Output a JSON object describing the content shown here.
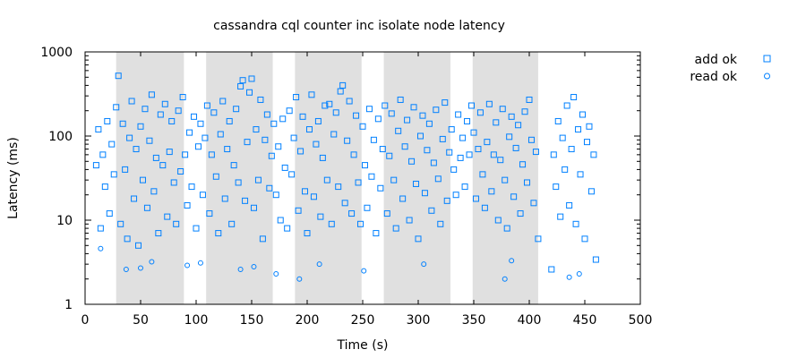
{
  "chart_data": {
    "type": "scatter",
    "title": "cassandra cql counter inc isolate node latency",
    "xlabel": "Time (s)",
    "ylabel": "Latency (ms)",
    "xlim": [
      0,
      500
    ],
    "ylim": [
      1,
      1000
    ],
    "y_scale": "log",
    "x_ticks": [
      0,
      50,
      100,
      150,
      200,
      250,
      300,
      350,
      400,
      450,
      500
    ],
    "x_tick_labels": [
      "0",
      "50",
      "100",
      "150",
      "200",
      "250",
      "300",
      "350",
      "400",
      "450",
      "500"
    ],
    "y_ticks": [
      1,
      10,
      100,
      1000
    ],
    "y_tick_labels": [
      "1",
      "10",
      "100",
      "1000"
    ],
    "legend_position": "top-right-outside",
    "shaded_intervals": [
      [
        28,
        89
      ],
      [
        109,
        169
      ],
      [
        189,
        249
      ],
      [
        269,
        329
      ],
      [
        349,
        408
      ]
    ],
    "shade_color": "#e0e0e0",
    "marker_color": "#0080ff",
    "series": [
      {
        "name": "add ok",
        "marker": "square",
        "points": [
          [
            10,
            45
          ],
          [
            12,
            120
          ],
          [
            14,
            8
          ],
          [
            16,
            60
          ],
          [
            18,
            25
          ],
          [
            20,
            150
          ],
          [
            22,
            12
          ],
          [
            24,
            80
          ],
          [
            26,
            35
          ],
          [
            28,
            220
          ],
          [
            30,
            520
          ],
          [
            32,
            9
          ],
          [
            34,
            140
          ],
          [
            36,
            40
          ],
          [
            38,
            6
          ],
          [
            40,
            95
          ],
          [
            42,
            260
          ],
          [
            44,
            18
          ],
          [
            46,
            70
          ],
          [
            48,
            5
          ],
          [
            50,
            130
          ],
          [
            52,
            30
          ],
          [
            54,
            210
          ],
          [
            56,
            14
          ],
          [
            58,
            88
          ],
          [
            60,
            310
          ],
          [
            62,
            22
          ],
          [
            64,
            55
          ],
          [
            66,
            7
          ],
          [
            68,
            180
          ],
          [
            70,
            45
          ],
          [
            72,
            240
          ],
          [
            74,
            11
          ],
          [
            76,
            65
          ],
          [
            78,
            150
          ],
          [
            80,
            28
          ],
          [
            82,
            9
          ],
          [
            84,
            200
          ],
          [
            86,
            38
          ],
          [
            88,
            290
          ],
          [
            90,
            60
          ],
          [
            92,
            15
          ],
          [
            94,
            110
          ],
          [
            96,
            25
          ],
          [
            98,
            170
          ],
          [
            100,
            8
          ],
          [
            102,
            75
          ],
          [
            104,
            140
          ],
          [
            106,
            20
          ],
          [
            108,
            95
          ],
          [
            110,
            230
          ],
          [
            112,
            12
          ],
          [
            114,
            60
          ],
          [
            116,
            190
          ],
          [
            118,
            33
          ],
          [
            120,
            7
          ],
          [
            122,
            105
          ],
          [
            124,
            260
          ],
          [
            126,
            18
          ],
          [
            128,
            70
          ],
          [
            130,
            150
          ],
          [
            132,
            9
          ],
          [
            134,
            45
          ],
          [
            136,
            210
          ],
          [
            138,
            28
          ],
          [
            140,
            390
          ],
          [
            142,
            460
          ],
          [
            144,
            17
          ],
          [
            146,
            85
          ],
          [
            148,
            330
          ],
          [
            150,
            480
          ],
          [
            152,
            14
          ],
          [
            154,
            120
          ],
          [
            156,
            30
          ],
          [
            158,
            270
          ],
          [
            160,
            6
          ],
          [
            162,
            90
          ],
          [
            164,
            180
          ],
          [
            166,
            24
          ],
          [
            168,
            58
          ],
          [
            170,
            140
          ],
          [
            172,
            20
          ],
          [
            174,
            75
          ],
          [
            176,
            10
          ],
          [
            178,
            160
          ],
          [
            180,
            42
          ],
          [
            182,
            8
          ],
          [
            184,
            200
          ],
          [
            186,
            35
          ],
          [
            188,
            95
          ],
          [
            190,
            290
          ],
          [
            192,
            13
          ],
          [
            194,
            66
          ],
          [
            196,
            170
          ],
          [
            198,
            22
          ],
          [
            200,
            7
          ],
          [
            202,
            120
          ],
          [
            204,
            310
          ],
          [
            206,
            19
          ],
          [
            208,
            80
          ],
          [
            210,
            150
          ],
          [
            212,
            11
          ],
          [
            214,
            55
          ],
          [
            216,
            230
          ],
          [
            218,
            30
          ],
          [
            220,
            240
          ],
          [
            222,
            9
          ],
          [
            224,
            105
          ],
          [
            226,
            190
          ],
          [
            228,
            25
          ],
          [
            230,
            340
          ],
          [
            232,
            400
          ],
          [
            234,
            16
          ],
          [
            236,
            88
          ],
          [
            238,
            260
          ],
          [
            240,
            12
          ],
          [
            242,
            60
          ],
          [
            244,
            175
          ],
          [
            246,
            28
          ],
          [
            248,
            9
          ],
          [
            250,
            130
          ],
          [
            252,
            45
          ],
          [
            254,
            14
          ],
          [
            256,
            210
          ],
          [
            258,
            33
          ],
          [
            260,
            90
          ],
          [
            262,
            7
          ],
          [
            264,
            160
          ],
          [
            266,
            24
          ],
          [
            268,
            70
          ],
          [
            270,
            230
          ],
          [
            272,
            12
          ],
          [
            274,
            58
          ],
          [
            276,
            185
          ],
          [
            278,
            30
          ],
          [
            280,
            8
          ],
          [
            282,
            115
          ],
          [
            284,
            270
          ],
          [
            286,
            18
          ],
          [
            288,
            75
          ],
          [
            290,
            155
          ],
          [
            292,
            10
          ],
          [
            294,
            50
          ],
          [
            296,
            220
          ],
          [
            298,
            27
          ],
          [
            300,
            6
          ],
          [
            302,
            100
          ],
          [
            304,
            175
          ],
          [
            306,
            21
          ],
          [
            308,
            68
          ],
          [
            310,
            140
          ],
          [
            312,
            13
          ],
          [
            314,
            48
          ],
          [
            316,
            205
          ],
          [
            318,
            31
          ],
          [
            320,
            9
          ],
          [
            322,
            92
          ],
          [
            324,
            250
          ],
          [
            326,
            17
          ],
          [
            328,
            64
          ],
          [
            330,
            120
          ],
          [
            332,
            40
          ],
          [
            334,
            20
          ],
          [
            336,
            180
          ],
          [
            338,
            55
          ],
          [
            340,
            95
          ],
          [
            342,
            25
          ],
          [
            344,
            150
          ],
          [
            346,
            60
          ],
          [
            348,
            230
          ],
          [
            350,
            110
          ],
          [
            352,
            18
          ],
          [
            354,
            70
          ],
          [
            356,
            190
          ],
          [
            358,
            35
          ],
          [
            360,
            14
          ],
          [
            362,
            85
          ],
          [
            364,
            240
          ],
          [
            366,
            22
          ],
          [
            368,
            60
          ],
          [
            370,
            145
          ],
          [
            372,
            10
          ],
          [
            374,
            52
          ],
          [
            376,
            210
          ],
          [
            378,
            30
          ],
          [
            380,
            8
          ],
          [
            382,
            98
          ],
          [
            384,
            170
          ],
          [
            386,
            19
          ],
          [
            388,
            72
          ],
          [
            390,
            135
          ],
          [
            392,
            12
          ],
          [
            394,
            46
          ],
          [
            396,
            195
          ],
          [
            398,
            28
          ],
          [
            400,
            270
          ],
          [
            402,
            90
          ],
          [
            404,
            16
          ],
          [
            406,
            65
          ],
          [
            408,
            6
          ],
          [
            420,
            2.6
          ],
          [
            422,
            60
          ],
          [
            424,
            25
          ],
          [
            426,
            150
          ],
          [
            428,
            11
          ],
          [
            430,
            95
          ],
          [
            432,
            40
          ],
          [
            434,
            230
          ],
          [
            436,
            15
          ],
          [
            438,
            70
          ],
          [
            440,
            290
          ],
          [
            442,
            9
          ],
          [
            444,
            120
          ],
          [
            446,
            35
          ],
          [
            448,
            180
          ],
          [
            450,
            6
          ],
          [
            452,
            85
          ],
          [
            454,
            130
          ],
          [
            456,
            22
          ],
          [
            458,
            60
          ],
          [
            460,
            3.4
          ]
        ]
      },
      {
        "name": "read ok",
        "marker": "circle",
        "points": [
          [
            14,
            4.6
          ],
          [
            37,
            2.6
          ],
          [
            50,
            2.7
          ],
          [
            60,
            3.2
          ],
          [
            92,
            2.9
          ],
          [
            104,
            3.1
          ],
          [
            140,
            2.6
          ],
          [
            152,
            2.8
          ],
          [
            172,
            2.3
          ],
          [
            193,
            2.0
          ],
          [
            211,
            3.0
          ],
          [
            251,
            2.5
          ],
          [
            305,
            3.0
          ],
          [
            378,
            2.0
          ],
          [
            384,
            3.3
          ],
          [
            436,
            2.1
          ],
          [
            445,
            2.3
          ]
        ]
      }
    ]
  }
}
